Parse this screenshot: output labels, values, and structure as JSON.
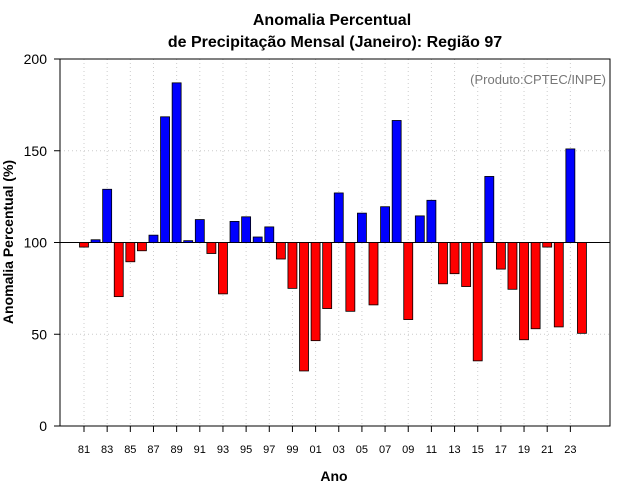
{
  "chart_data": {
    "type": "bar",
    "title": "Anomalia Percentual",
    "subtitle": "de Precipitação Mensal (Janeiro): Região 97",
    "credit": "(Produto:CPTEC/INPE)",
    "xlabel": "Ano",
    "ylabel": "Anomalia Percentual (%)",
    "ylim": [
      0,
      200
    ],
    "yticks": [
      0,
      50,
      100,
      150,
      200
    ],
    "baseline": 100,
    "grid": true,
    "categories": [
      "1981",
      "1982",
      "1983",
      "1984",
      "1985",
      "1986",
      "1987",
      "1988",
      "1989",
      "1990",
      "1991",
      "1992",
      "1993",
      "1994",
      "1995",
      "1996",
      "1997",
      "1998",
      "1999",
      "2000",
      "2001",
      "2002",
      "2003",
      "2004",
      "2005",
      "2006",
      "2007",
      "2008",
      "2009",
      "2010",
      "2011",
      "2012",
      "2013",
      "2014",
      "2015",
      "2016",
      "2017",
      "2018",
      "2019",
      "2020",
      "2021",
      "2022",
      "2023",
      "2024"
    ],
    "xtick_labels": [
      "81",
      "83",
      "85",
      "87",
      "89",
      "91",
      "93",
      "95",
      "97",
      "99",
      "01",
      "03",
      "05",
      "07",
      "09",
      "11",
      "13",
      "15",
      "17",
      "19",
      "21",
      "23"
    ],
    "values": [
      97.5,
      101.5,
      129,
      70.5,
      89.5,
      95.5,
      104,
      168.5,
      187,
      101,
      112.5,
      94,
      72,
      111.5,
      114,
      103,
      108.5,
      91,
      75,
      30,
      46.5,
      64,
      127,
      62.5,
      116,
      66,
      119.5,
      166.5,
      58,
      114.5,
      123,
      77.5,
      83,
      76,
      35.5,
      136,
      85.5,
      74.5,
      47,
      53,
      97.5,
      54,
      151,
      50.5
    ],
    "colors": {
      "above": "#0000ff",
      "below": "#ff0000",
      "frame": "#000000",
      "grid": "#cccccc"
    }
  }
}
